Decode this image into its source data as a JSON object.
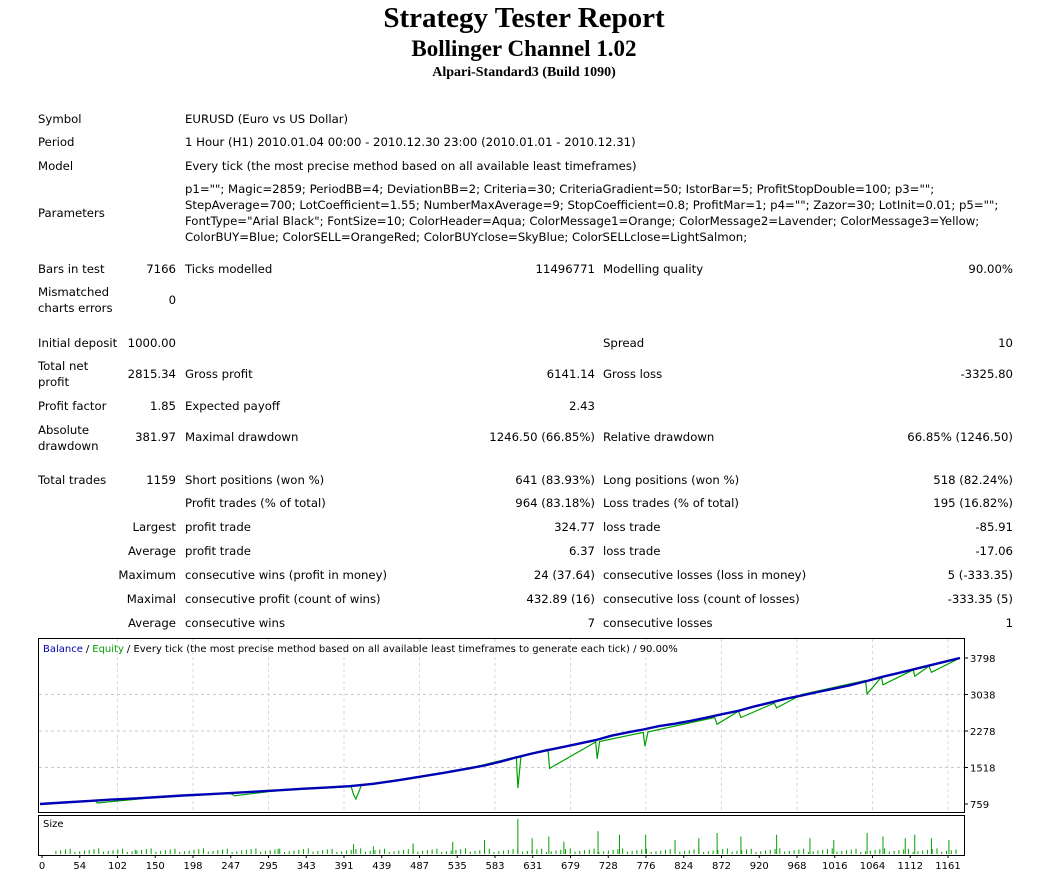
{
  "header": {
    "title": "Strategy Tester Report",
    "subtitle": "Bollinger Channel 1.02",
    "server": "Alpari-Standard3 (Build 1090)"
  },
  "info": {
    "symbol_label": "Symbol",
    "symbol_value": "EURUSD (Euro vs US Dollar)",
    "period_label": "Period",
    "period_value": "1 Hour (H1) 2010.01.04 00:00 - 2010.12.30 23:00 (2010.01.01 - 2010.12.31)",
    "model_label": "Model",
    "model_value": "Every tick (the most precise method based on all available least timeframes)",
    "parameters_label": "Parameters",
    "parameters_lines": [
      "p1=\"\"; Magic=2859; PeriodBB=4; DeviationBB=2; Criteria=30; CriteriaGradient=50; IstorBar=5; ProfitStopDouble=100; p3=\"\";",
      "StepAverage=700; LotCoefficient=1.55; NumberMaxAverage=9; StopCoefficient=0.8; ProfitMar=1; p4=\"\"; Zazor=30; LotInit=0.01; p5=\"\";",
      "FontType=\"Arial Black\"; FontSize=10; ColorHeader=Aqua; ColorMessage1=Orange; ColorMessage2=Lavender; ColorMessage3=Yellow;",
      "ColorBUY=Blue; ColorSELL=OrangeRed; ColorBUYclose=SkyBlue; ColorSELLclose=LightSalmon;"
    ]
  },
  "stats": {
    "bars_label": "Bars in test",
    "bars_value": "7166",
    "ticks_label": "Ticks modelled",
    "ticks_value": "11496771",
    "quality_label": "Modelling quality",
    "quality_value": "90.00%",
    "mismatch_label": "Mismatched charts errors",
    "mismatch_value": "0",
    "deposit_label": "Initial deposit",
    "deposit_value": "1000.00",
    "spread_label": "Spread",
    "spread_value": "10",
    "netprofit_label": "Total net profit",
    "netprofit_value": "2815.34",
    "grossprofit_label": "Gross profit",
    "grossprofit_value": "6141.14",
    "grossloss_label": "Gross loss",
    "grossloss_value": "-3325.80",
    "pf_label": "Profit factor",
    "pf_value": "1.85",
    "payoff_label": "Expected payoff",
    "payoff_value": "2.43",
    "absdd_label": "Absolute drawdown",
    "absdd_value": "381.97",
    "maxdd_label": "Maximal drawdown",
    "maxdd_value": "1246.50 (66.85%)",
    "reldd_label": "Relative drawdown",
    "reldd_value": "66.85% (1246.50)",
    "trades_label": "Total trades",
    "trades_value": "1159",
    "short_label": "Short positions (won %)",
    "short_value": "641 (83.93%)",
    "long_label": "Long positions (won %)",
    "long_value": "518 (82.24%)",
    "ptrades_label": "Profit trades (% of total)",
    "ptrades_value": "964 (83.18%)",
    "ltrades_label": "Loss trades (% of total)",
    "ltrades_value": "195 (16.82%)",
    "largest_label": "Largest",
    "largest_p_label": "profit trade",
    "largest_p_value": "324.77",
    "largest_l_label": "loss trade",
    "largest_l_value": "-85.91",
    "average_label": "Average",
    "average_p_label": "profit trade",
    "average_p_value": "6.37",
    "average_l_label": "loss trade",
    "average_l_value": "-17.06",
    "maximum_label": "Maximum",
    "maximum_p_label": "consecutive wins (profit in money)",
    "maximum_p_value": "24 (37.64)",
    "maximum_l_label": "consecutive losses (loss in money)",
    "maximum_l_value": "5 (-333.35)",
    "maximal_label": "Maximal",
    "maximal_p_label": "consecutive profit (count of wins)",
    "maximal_p_value": "432.89 (16)",
    "maximal_l_label": "consecutive loss (count of losses)",
    "maximal_l_value": "-333.35 (5)",
    "avgcons_label": "Average",
    "avgcons_p_label": "consecutive wins",
    "avgcons_p_value": "7",
    "avgcons_l_label": "consecutive losses",
    "avgcons_l_value": "1"
  },
  "chart_data": {
    "type": "line",
    "legend": {
      "balance": "Balance",
      "separator": "/",
      "equity": "Equity",
      "rest": "/ Every tick (the most precise method based on all available least timeframes to generate each tick) / 90.00%"
    },
    "size_label": "Size",
    "x_ticks": [
      "0",
      "54",
      "102",
      "150",
      "198",
      "247",
      "295",
      "343",
      "391",
      "439",
      "487",
      "535",
      "583",
      "631",
      "679",
      "728",
      "776",
      "824",
      "872",
      "920",
      "968",
      "1016",
      "1064",
      "1112",
      "1161"
    ],
    "y_ticks": [
      "3798",
      "3038",
      "2278",
      "1518",
      "759"
    ],
    "ylim": [
      759,
      3798
    ],
    "xlim": [
      0,
      1159
    ],
    "grid": true,
    "colors": {
      "balance": "#0000b4",
      "equity": "#00a000",
      "size": "#00a000",
      "frame": "#000000"
    },
    "series": [
      {
        "name": "Balance",
        "x": [
          0,
          30,
          60,
          90,
          120,
          150,
          180,
          210,
          240,
          270,
          300,
          330,
          360,
          390,
          420,
          450,
          480,
          510,
          540,
          560,
          580,
          600,
          620,
          640,
          660,
          680,
          700,
          720,
          740,
          760,
          780,
          800,
          820,
          840,
          860,
          880,
          900,
          920,
          940,
          960,
          980,
          1000,
          1020,
          1040,
          1060,
          1080,
          1100,
          1120,
          1140,
          1159
        ],
        "y": [
          759,
          790,
          820,
          850,
          875,
          905,
          935,
          960,
          985,
          1015,
          1045,
          1075,
          1100,
          1130,
          1180,
          1250,
          1330,
          1410,
          1500,
          1560,
          1640,
          1730,
          1810,
          1880,
          1950,
          2020,
          2090,
          2180,
          2250,
          2310,
          2380,
          2430,
          2490,
          2560,
          2630,
          2700,
          2790,
          2870,
          2950,
          3020,
          3090,
          3160,
          3230,
          3310,
          3400,
          3480,
          3560,
          3640,
          3720,
          3798
        ]
      },
      {
        "name": "Equity",
        "x": [
          0,
          70,
          72,
          150,
          240,
          245,
          300,
          392,
          395,
          398,
          405,
          490,
          550,
          600,
          602,
          606,
          640,
          642,
          700,
          702,
          705,
          760,
          762,
          766,
          850,
          853,
          880,
          883,
          925,
          928,
          960,
          1040,
          1042,
          1060,
          1062,
          1100,
          1102,
          1120,
          1123,
          1159
        ],
        "y": [
          759,
          830,
          780,
          905,
          980,
          930,
          1040,
          1120,
          960,
          860,
          1150,
          1360,
          1540,
          1740,
          1090,
          1760,
          1900,
          1500,
          2050,
          1700,
          2060,
          2250,
          1960,
          2260,
          2560,
          2420,
          2690,
          2560,
          2860,
          2760,
          3040,
          3330,
          3050,
          3400,
          3240,
          3550,
          3420,
          3630,
          3500,
          3798
        ]
      }
    ],
    "size_spikes": [
      {
        "x": 120,
        "v": 0.12
      },
      {
        "x": 230,
        "v": 0.1
      },
      {
        "x": 300,
        "v": 0.15
      },
      {
        "x": 395,
        "v": 0.28
      },
      {
        "x": 420,
        "v": 0.22
      },
      {
        "x": 470,
        "v": 0.3
      },
      {
        "x": 520,
        "v": 0.35
      },
      {
        "x": 560,
        "v": 0.4
      },
      {
        "x": 602,
        "v": 1.0
      },
      {
        "x": 620,
        "v": 0.45
      },
      {
        "x": 641,
        "v": 0.5
      },
      {
        "x": 660,
        "v": 0.35
      },
      {
        "x": 703,
        "v": 0.65
      },
      {
        "x": 730,
        "v": 0.55
      },
      {
        "x": 763,
        "v": 0.55
      },
      {
        "x": 800,
        "v": 0.4
      },
      {
        "x": 830,
        "v": 0.45
      },
      {
        "x": 853,
        "v": 0.6
      },
      {
        "x": 883,
        "v": 0.5
      },
      {
        "x": 928,
        "v": 0.55
      },
      {
        "x": 970,
        "v": 0.45
      },
      {
        "x": 1000,
        "v": 0.4
      },
      {
        "x": 1042,
        "v": 0.6
      },
      {
        "x": 1062,
        "v": 0.5
      },
      {
        "x": 1090,
        "v": 0.45
      },
      {
        "x": 1102,
        "v": 0.55
      },
      {
        "x": 1123,
        "v": 0.45
      },
      {
        "x": 1145,
        "v": 0.4
      }
    ]
  }
}
